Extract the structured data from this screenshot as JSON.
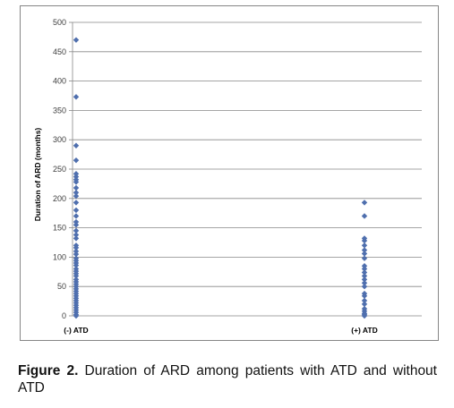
{
  "caption": {
    "label": "Figure 2.",
    "text": " Duration of ARD among patients with ATD and without ATD"
  },
  "chart_data": {
    "type": "scatter",
    "title": "",
    "xlabel": "",
    "ylabel": "Duration of ARD (months)",
    "ylim": [
      0,
      500
    ],
    "yticks": [
      "0",
      "50",
      "100",
      "150",
      "200",
      "250",
      "300",
      "350",
      "400",
      "450",
      "500"
    ],
    "grid": true,
    "marker_color": "#4f6fae",
    "categories": [
      "(-) ATD",
      "(+) ATD"
    ],
    "series": [
      {
        "category": "(-) ATD",
        "values": [
          470,
          373,
          290,
          265,
          242,
          237,
          232,
          228,
          218,
          210,
          204,
          193,
          180,
          170,
          160,
          155,
          145,
          138,
          132,
          120,
          116,
          110,
          105,
          98,
          94,
          90,
          86,
          80,
          76,
          72,
          68,
          62,
          58,
          54,
          50,
          46,
          42,
          38,
          34,
          30,
          26,
          22,
          18,
          14,
          10,
          6,
          2,
          0
        ]
      },
      {
        "category": "(+) ATD",
        "values": [
          193,
          170,
          132,
          128,
          120,
          112,
          106,
          98,
          85,
          80,
          74,
          68,
          62,
          56,
          50,
          38,
          34,
          26,
          20,
          12,
          8,
          4,
          2,
          0
        ]
      }
    ]
  }
}
